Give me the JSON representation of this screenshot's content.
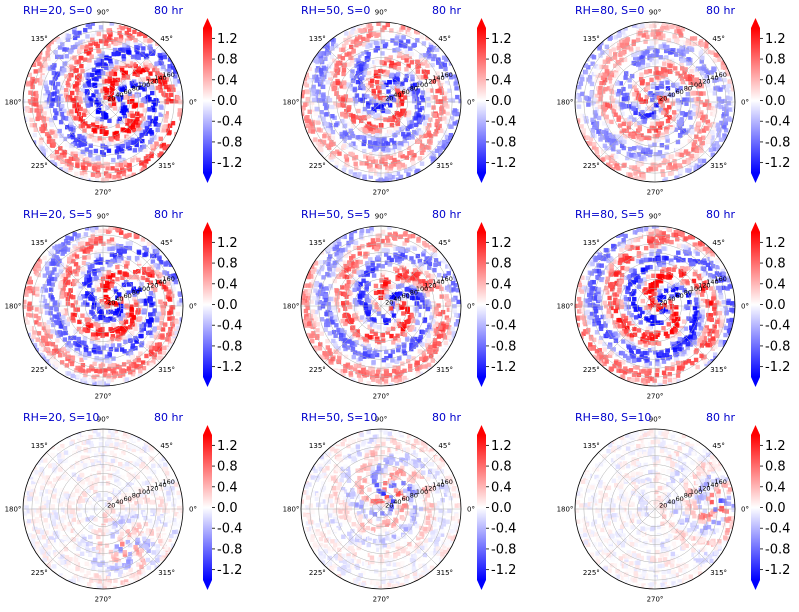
{
  "figure": {
    "time_label": "80 hr",
    "colormap": "bwr",
    "colors": {
      "negative": "#0000ff",
      "zero": "#ffffff",
      "positive": "#ff0000",
      "title": "#0000cc",
      "grid": "#b0b0b0"
    }
  },
  "chart_data": [
    {
      "type": "heatmap",
      "subtype": "polar",
      "title": "RH=20, S=0",
      "time": "80 hr",
      "theta_ticks": [
        "0°",
        "45°",
        "90°",
        "135°",
        "180°",
        "225°",
        "270°",
        "315°"
      ],
      "r_ticks": [
        "20",
        "40",
        "60",
        "80",
        "100",
        "120",
        "140",
        "160"
      ],
      "r_range": [
        0,
        180
      ],
      "colorbar": {
        "ticks": [
          "-1.2",
          "-0.8",
          "-0.4",
          "0.0",
          "0.4",
          "0.8",
          "1.2"
        ],
        "range": [
          -1.4,
          1.4
        ],
        "extend": "both"
      },
      "pattern": {
        "intensity": 0.95,
        "spiral": true,
        "center_offset": [
          0.25,
          0
        ]
      }
    },
    {
      "type": "heatmap",
      "subtype": "polar",
      "title": "RH=50, S=0",
      "time": "80 hr",
      "theta_ticks": [
        "0°",
        "45°",
        "90°",
        "135°",
        "180°",
        "225°",
        "270°",
        "315°"
      ],
      "r_ticks": [
        "20",
        "40",
        "60",
        "80",
        "100",
        "120",
        "140",
        "160"
      ],
      "r_range": [
        0,
        180
      ],
      "colorbar": {
        "ticks": [
          "-1.2",
          "-0.8",
          "-0.4",
          "0.0",
          "0.4",
          "0.8",
          "1.2"
        ],
        "range": [
          -1.4,
          1.4
        ],
        "extend": "both"
      },
      "pattern": {
        "intensity": 0.7,
        "spiral": true,
        "center_offset": [
          0.1,
          0.1
        ]
      }
    },
    {
      "type": "heatmap",
      "subtype": "polar",
      "title": "RH=80, S=0",
      "time": "80 hr",
      "theta_ticks": [
        "0°",
        "45°",
        "90°",
        "135°",
        "180°",
        "225°",
        "270°",
        "315°"
      ],
      "r_ticks": [
        "20",
        "40",
        "60",
        "80",
        "100",
        "120",
        "140",
        "160"
      ],
      "r_range": [
        0,
        180
      ],
      "colorbar": {
        "ticks": [
          "-1.2",
          "-0.8",
          "-0.4",
          "0.0",
          "0.4",
          "0.8",
          "1.2"
        ],
        "range": [
          -1.4,
          1.4
        ],
        "extend": "both"
      },
      "pattern": {
        "intensity": 0.6,
        "spiral": true,
        "center_offset": [
          0.0,
          0.0
        ]
      }
    },
    {
      "type": "heatmap",
      "subtype": "polar",
      "title": "RH=20, S=5",
      "time": "80 hr",
      "theta_ticks": [
        "0°",
        "45°",
        "90°",
        "135°",
        "180°",
        "225°",
        "270°",
        "315°"
      ],
      "r_ticks": [
        "20",
        "40",
        "60",
        "80",
        "100",
        "120",
        "140",
        "160"
      ],
      "r_range": [
        0,
        180
      ],
      "colorbar": {
        "ticks": [
          "-1.2",
          "-0.8",
          "-0.4",
          "0.0",
          "0.4",
          "0.8",
          "1.2"
        ],
        "range": [
          -1.4,
          1.4
        ],
        "extend": "both"
      },
      "pattern": {
        "intensity": 0.85,
        "spiral": true,
        "center_offset": [
          0.2,
          0.05
        ]
      }
    },
    {
      "type": "heatmap",
      "subtype": "polar",
      "title": "RH=50, S=5",
      "time": "80 hr",
      "theta_ticks": [
        "0°",
        "45°",
        "90°",
        "135°",
        "180°",
        "225°",
        "270°",
        "315°"
      ],
      "r_ticks": [
        "20",
        "40",
        "60",
        "80",
        "100",
        "120",
        "140",
        "160"
      ],
      "r_range": [
        0,
        180
      ],
      "colorbar": {
        "ticks": [
          "-1.2",
          "-0.8",
          "-0.4",
          "0.0",
          "0.4",
          "0.8",
          "1.2"
        ],
        "range": [
          -1.4,
          1.4
        ],
        "extend": "both"
      },
      "pattern": {
        "intensity": 0.75,
        "spiral": true,
        "center_offset": [
          0.15,
          0.0
        ]
      }
    },
    {
      "type": "heatmap",
      "subtype": "polar",
      "title": "RH=80, S=5",
      "time": "80 hr",
      "theta_ticks": [
        "0°",
        "45°",
        "90°",
        "135°",
        "180°",
        "225°",
        "270°",
        "315°"
      ],
      "r_ticks": [
        "20",
        "40",
        "60",
        "80",
        "100",
        "120",
        "140",
        "160"
      ],
      "r_range": [
        0,
        180
      ],
      "colorbar": {
        "ticks": [
          "-1.2",
          "-0.8",
          "-0.4",
          "0.0",
          "0.4",
          "0.8",
          "1.2"
        ],
        "range": [
          -1.4,
          1.4
        ],
        "extend": "both"
      },
      "pattern": {
        "intensity": 0.9,
        "spiral": true,
        "center_offset": [
          0.1,
          0.0
        ]
      }
    },
    {
      "type": "heatmap",
      "subtype": "polar",
      "title": "RH=20, S=10",
      "time": "80 hr",
      "theta_ticks": [
        "0°",
        "45°",
        "90°",
        "135°",
        "180°",
        "225°",
        "270°",
        "315°"
      ],
      "r_ticks": [
        "20",
        "40",
        "60",
        "80",
        "100",
        "120",
        "140",
        "160"
      ],
      "r_range": [
        0,
        180
      ],
      "colorbar": {
        "ticks": [
          "-1.2",
          "-0.8",
          "-0.4",
          "0.0",
          "0.4",
          "0.8",
          "1.2"
        ],
        "range": [
          -1.4,
          1.4
        ],
        "extend": "both"
      },
      "pattern": {
        "intensity": 0.35,
        "spiral": false,
        "center_offset": [
          0.3,
          -0.5
        ]
      }
    },
    {
      "type": "heatmap",
      "subtype": "polar",
      "title": "RH=50, S=10",
      "time": "80 hr",
      "theta_ticks": [
        "0°",
        "45°",
        "90°",
        "135°",
        "180°",
        "225°",
        "270°",
        "315°"
      ],
      "r_ticks": [
        "20",
        "40",
        "60",
        "80",
        "100",
        "120",
        "140",
        "160"
      ],
      "r_range": [
        0,
        180
      ],
      "colorbar": {
        "ticks": [
          "-1.2",
          "-0.8",
          "-0.4",
          "0.0",
          "0.4",
          "0.8",
          "1.2"
        ],
        "range": [
          -1.4,
          1.4
        ],
        "extend": "both"
      },
      "pattern": {
        "intensity": 0.65,
        "spiral": false,
        "center_offset": [
          0.1,
          0.2
        ]
      }
    },
    {
      "type": "heatmap",
      "subtype": "polar",
      "title": "RH=80, S=10",
      "time": "80 hr",
      "theta_ticks": [
        "0°",
        "45°",
        "90°",
        "135°",
        "180°",
        "225°",
        "270°",
        "315°"
      ],
      "r_ticks": [
        "20",
        "40",
        "60",
        "80",
        "100",
        "120",
        "140",
        "160"
      ],
      "r_range": [
        0,
        180
      ],
      "colorbar": {
        "ticks": [
          "-1.2",
          "-0.8",
          "-0.4",
          "0.0",
          "0.4",
          "0.8",
          "1.2"
        ],
        "range": [
          -1.4,
          1.4
        ],
        "extend": "both"
      },
      "pattern": {
        "intensity": 0.5,
        "spiral": false,
        "center_offset": [
          0.75,
          0.0
        ]
      }
    }
  ]
}
